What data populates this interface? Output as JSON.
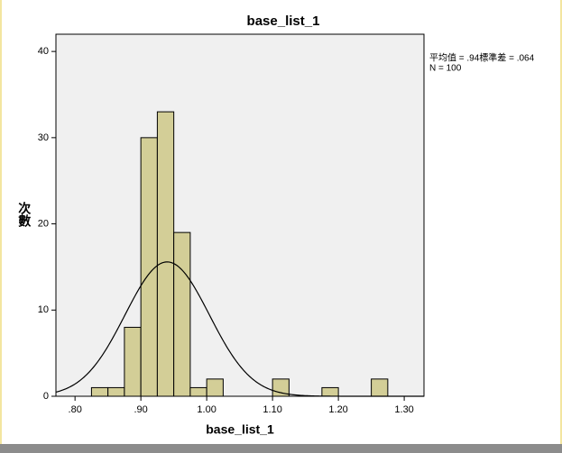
{
  "chart_data": {
    "type": "histogram",
    "title": "base_list_1",
    "x_label": "base_list_1",
    "y_label": "次數",
    "bins": [
      0.825,
      0.85,
      0.875,
      0.9,
      0.925,
      0.95,
      0.975,
      1.0,
      1.025,
      1.05,
      1.075,
      1.1,
      1.125,
      1.15,
      1.175,
      1.2,
      1.225,
      1.25,
      1.275
    ],
    "values": [
      1,
      1,
      8,
      30,
      33,
      19,
      1,
      2,
      0,
      0,
      0,
      2,
      0,
      0,
      1,
      0,
      0,
      2
    ],
    "color": "#d3ce97",
    "normal_curve": {
      "mean": 0.94,
      "sd": 0.064,
      "n": 100
    },
    "stats_text": [
      "平均值 = .94標準差 = .064",
      "N = 100"
    ],
    "xlim": [
      0.771,
      1.33
    ],
    "ylim": [
      0,
      42
    ],
    "xticks": [
      {
        "value": 0.8,
        "label": ".80"
      },
      {
        "value": 0.9,
        "label": ".90"
      },
      {
        "value": 1.0,
        "label": "1.00"
      },
      {
        "value": 1.1,
        "label": "1.10"
      },
      {
        "value": 1.2,
        "label": "1.20"
      },
      {
        "value": 1.3,
        "label": "1.30"
      }
    ],
    "yticks": [
      0,
      10,
      20,
      30,
      40
    ]
  }
}
